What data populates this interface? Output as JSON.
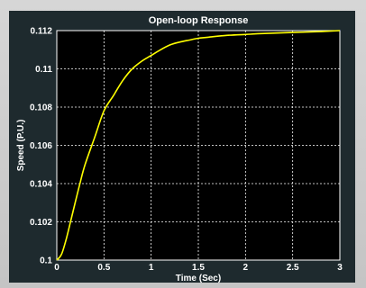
{
  "chart_data": {
    "type": "line",
    "title": "Open-loop Response",
    "xlabel": "Time (Sec)",
    "ylabel": "Speed (P.U.)",
    "xlim": [
      0,
      3
    ],
    "ylim": [
      0.1,
      0.112
    ],
    "xticks": [
      0,
      0.5,
      1,
      1.5,
      2,
      2.5,
      3
    ],
    "xtick_labels": [
      "0",
      "0.5",
      "1",
      "1.5",
      "2",
      "2.5",
      "3"
    ],
    "yticks": [
      0.1,
      0.102,
      0.104,
      0.106,
      0.108,
      0.11,
      0.112
    ],
    "ytick_labels": [
      "0.1",
      "0.102",
      "0.104",
      "0.106",
      "0.108",
      "0.11",
      "0.112"
    ],
    "grid": true,
    "colors": {
      "background": "#000000",
      "frame": "#1e2a2e",
      "grid": "#ffffff",
      "line": "#ffff00"
    },
    "series": [
      {
        "x": [
          0,
          0.05,
          0.1,
          0.15,
          0.2,
          0.25,
          0.3,
          0.4,
          0.5,
          0.6,
          0.7,
          0.8,
          0.9,
          1.0,
          1.1,
          1.2,
          1.3,
          1.4,
          1.5,
          1.6,
          1.8,
          2.0,
          2.2,
          2.5,
          2.8,
          3.0
        ],
        "y": [
          0.1,
          0.1003,
          0.1011,
          0.1021,
          0.1031,
          0.1041,
          0.105,
          0.1064,
          0.1078,
          0.1086,
          0.1094,
          0.11,
          0.1104,
          0.1107,
          0.111,
          0.11125,
          0.1114,
          0.1115,
          0.1116,
          0.11165,
          0.11175,
          0.1118,
          0.11185,
          0.1119,
          0.11195,
          0.112
        ]
      }
    ]
  }
}
